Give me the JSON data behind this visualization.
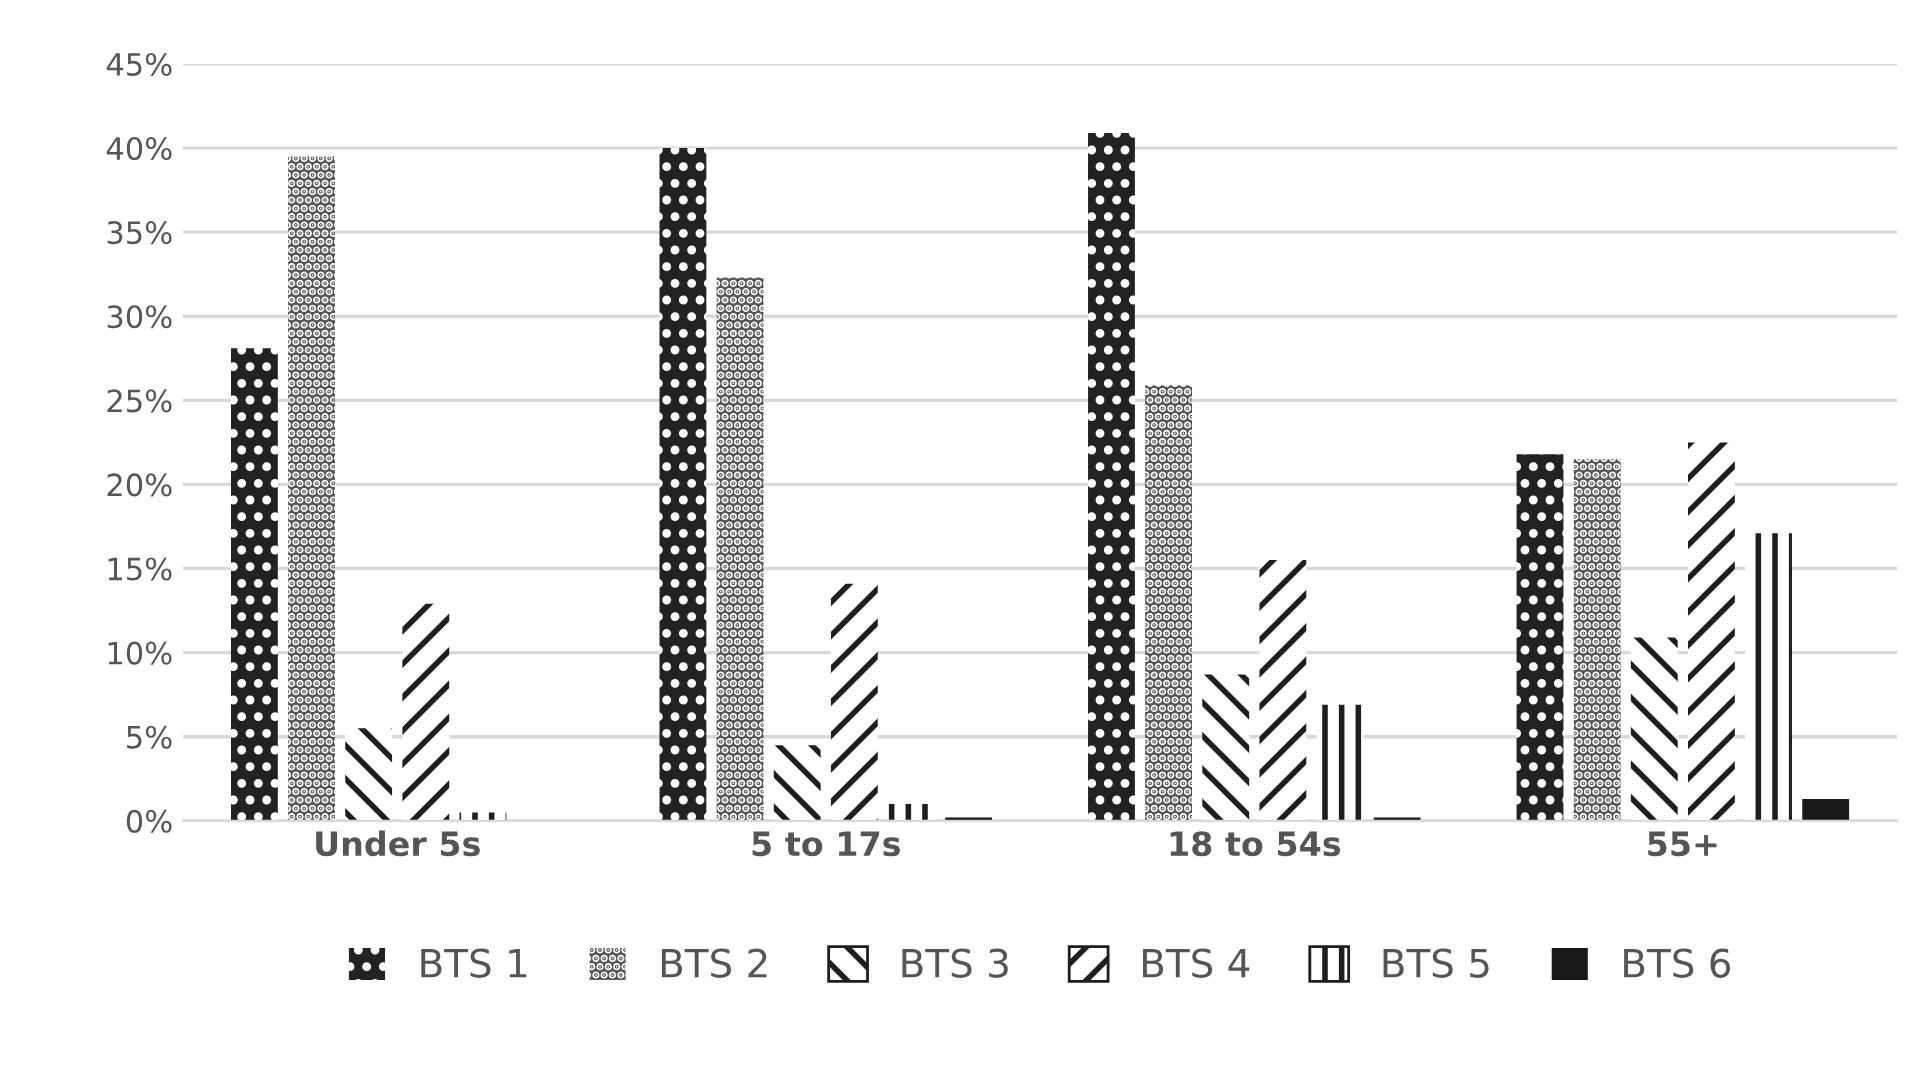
{
  "chart_data": {
    "type": "bar",
    "categories": [
      "Under 5s",
      "5 to 17s",
      "18 to 54s",
      "55+"
    ],
    "series": [
      {
        "name": "BTS 1",
        "color": "#222222",
        "values": [
          28.1,
          40,
          40.9,
          21.8
        ]
      },
      {
        "name": "BTS 2",
        "color": "#555555",
        "values": [
          39.5,
          32.3,
          25.9,
          21.5
        ]
      },
      {
        "name": "BTS 3",
        "color": "#1e1e1e",
        "values": [
          5.5,
          4.5,
          8.7,
          10.9
        ]
      },
      {
        "name": "BTS 4",
        "color": "#1e1e1e",
        "values": [
          12.9,
          14.1,
          15.5,
          22.5
        ]
      },
      {
        "name": "BTS 5",
        "color": "#1e1e1e",
        "values": [
          0.5,
          1.0,
          6.9,
          17.1
        ]
      },
      {
        "name": "BTS 6",
        "color": "#1a1a1a",
        "values": [
          0,
          0.2,
          0.2,
          1.3
        ]
      }
    ],
    "ylim": [
      0,
      45
    ],
    "yticks": [
      {
        "value": 0,
        "label": "0%"
      },
      {
        "value": 5,
        "label": "5%"
      },
      {
        "value": 10,
        "label": "10%"
      },
      {
        "value": 15,
        "label": "15%"
      },
      {
        "value": 20,
        "label": "20%"
      },
      {
        "value": 25,
        "label": "25%"
      },
      {
        "value": 30,
        "label": "30%"
      },
      {
        "value": 35,
        "label": "35%"
      },
      {
        "value": 40,
        "label": "40%"
      },
      {
        "value": 45,
        "label": "45%"
      }
    ],
    "grid": "y",
    "legend": "bottom"
  }
}
